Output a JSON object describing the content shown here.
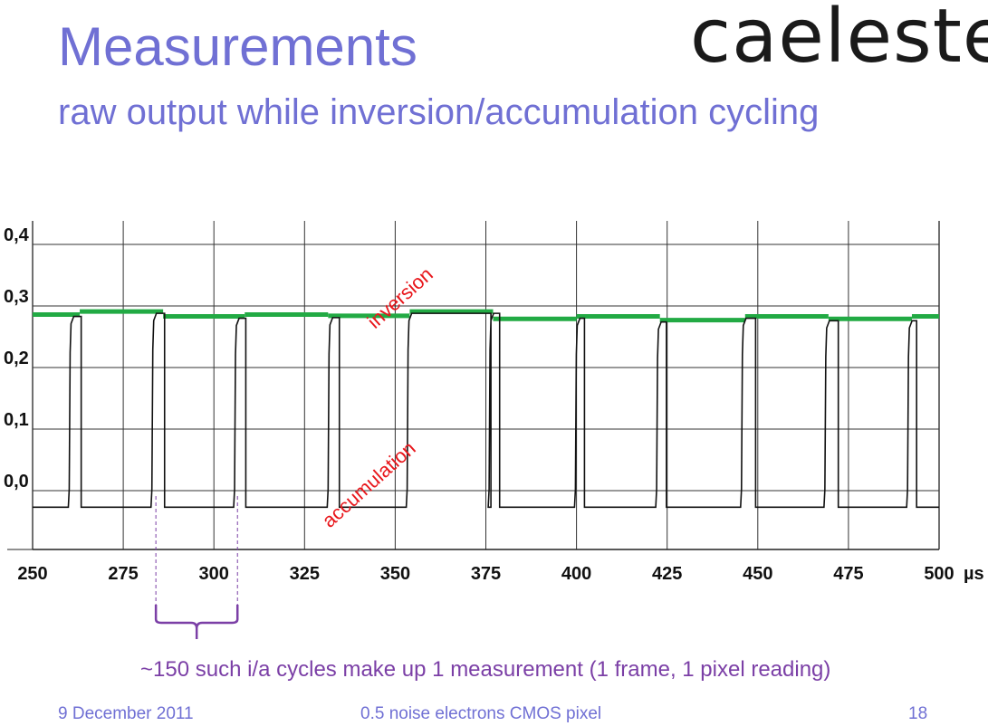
{
  "slide": {
    "title": "Measurements",
    "subtitle": "raw output while inversion/accumulation cycling",
    "logo": "caeleste",
    "caption": "~150 such i/a cycles make up 1 measurement (1 frame, 1 pixel reading)",
    "footer": {
      "date": "9 December 2011",
      "topic": "0.5 noise electrons CMOS pixel",
      "page": "18"
    }
  },
  "colors": {
    "title": "#7070d4",
    "annotation_red": "#e8161b",
    "level_green": "#22aa44",
    "brace_purple": "#7b3fa6",
    "trace": "#111111"
  },
  "chart_data": {
    "type": "line",
    "x_ticks": [
      "250",
      "275",
      "300",
      "325",
      "350",
      "375",
      "400",
      "425",
      "450",
      "475",
      "500"
    ],
    "x_unit": "µs",
    "y_ticks": [
      "0,0",
      "0,1",
      "0,2",
      "0,3",
      "0,4"
    ],
    "xlim": [
      250,
      500
    ],
    "ylim": [
      0.0,
      0.4
    ],
    "grid": true,
    "annotations": [
      "inversion",
      "accumulation"
    ],
    "baseline_level": -0.027,
    "pulses": [
      {
        "rise": 260.6,
        "fall": 263.4
      },
      {
        "rise": 283.4,
        "fall": 286.4
      },
      {
        "rise": 306.2,
        "fall": 308.8
      },
      {
        "rise": 332.0,
        "fall": 334.6
      },
      {
        "rise": 353.8,
        "fall": 376.4
      },
      {
        "rise": 376.4,
        "fall": 378.8
      },
      {
        "rise": 400.2,
        "fall": 402.2
      },
      {
        "rise": 422.6,
        "fall": 424.8
      },
      {
        "rise": 446.0,
        "fall": 449.4
      },
      {
        "rise": 469.0,
        "fall": 472.2
      },
      {
        "rise": 491.8,
        "fall": 493.8
      }
    ],
    "green_levels": [
      {
        "x0": 250.0,
        "x1": 263.0,
        "y": 0.286
      },
      {
        "x0": 263.0,
        "x1": 286.0,
        "y": 0.291
      },
      {
        "x0": 286.0,
        "x1": 308.5,
        "y": 0.283
      },
      {
        "x0": 308.5,
        "x1": 331.5,
        "y": 0.286
      },
      {
        "x0": 331.5,
        "x1": 354.0,
        "y": 0.284
      },
      {
        "x0": 354.0,
        "x1": 377.0,
        "y": 0.291
      },
      {
        "x0": 377.0,
        "x1": 400.0,
        "y": 0.279
      },
      {
        "x0": 400.0,
        "x1": 423.0,
        "y": 0.283
      },
      {
        "x0": 423.0,
        "x1": 446.5,
        "y": 0.277
      },
      {
        "x0": 446.5,
        "x1": 469.5,
        "y": 0.283
      },
      {
        "x0": 469.5,
        "x1": 492.5,
        "y": 0.279
      },
      {
        "x0": 492.5,
        "x1": 500.0,
        "y": 0.283
      }
    ],
    "highlight_cycle": {
      "x0": 284.0,
      "x1": 306.5
    }
  }
}
